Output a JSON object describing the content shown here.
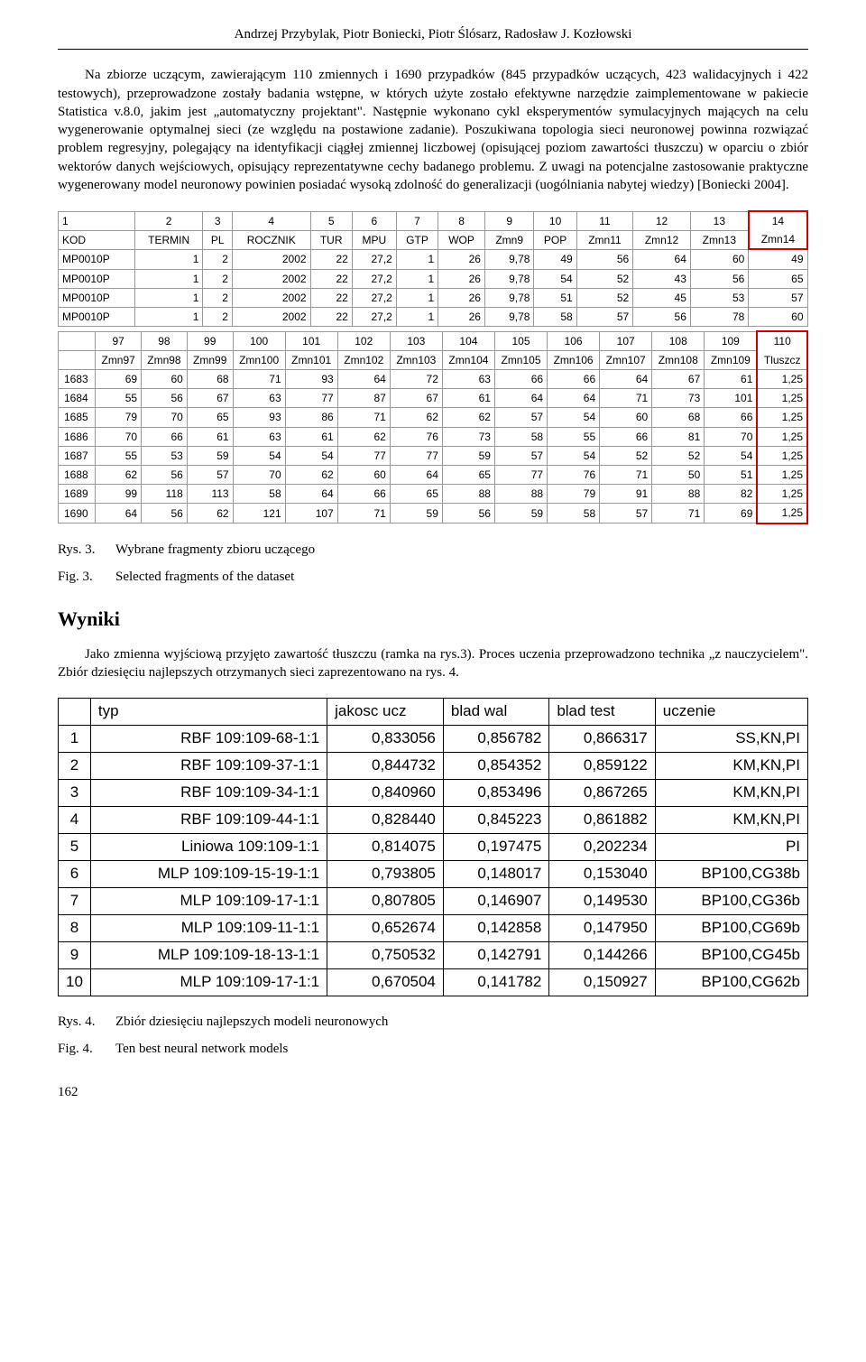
{
  "authors": "Andrzej Przybylak, Piotr Boniecki, Piotr Ślósarz, Radosław J. Kozłowski",
  "paragraph": "Na zbiorze uczącym, zawierającym 110 zmiennych i 1690 przypadków (845 przypadków uczących, 423 walidacyjnych i 422 testowych), przeprowadzone zostały badania wstępne, w których użyte zostało efektywne narzędzie zaimplementowane w pakiecie Statistica v.8.0, jakim jest „automatyczny projektant\". Następnie wykonano cykl eksperymentów symulacyjnych mających na celu wygenerowanie optymalnej sieci (ze względu na postawione zadanie). Poszukiwana topologia sieci neuronowej powinna rozwiązać problem regresyjny, polegający na identyfikacji ciągłej zmiennej liczbowej (opisującej poziom zawartości tłuszczu) w oparciu o zbiór wektorów danych wejściowych, opisujący reprezentatywne cechy badanego problemu. Z uwagi na potencjalne zastosowanie praktyczne wygenerowany model neuronowy powinien posiadać wysoką zdolność do generalizacji (uogólniania nabytej wiedzy) [Boniecki 2004].",
  "fig3": {
    "top": {
      "cols": [
        "1",
        "2",
        "3",
        "4",
        "5",
        "6",
        "7",
        "8",
        "9",
        "10",
        "11",
        "12",
        "13",
        "14"
      ],
      "headers": [
        "KOD",
        "TERMIN",
        "PL",
        "ROCZNIK",
        "TUR",
        "MPU",
        "GTP",
        "WOP",
        "Zmn9",
        "POP",
        "Zmn11",
        "Zmn12",
        "Zmn13",
        "Zmn14"
      ],
      "rows": [
        [
          "MP0010P",
          "1",
          "2",
          "2002",
          "22",
          "27,2",
          "1",
          "26",
          "9,78",
          "49",
          "56",
          "64",
          "60",
          "49"
        ],
        [
          "MP0010P",
          "1",
          "2",
          "2002",
          "22",
          "27,2",
          "1",
          "26",
          "9,78",
          "54",
          "52",
          "43",
          "56",
          "65"
        ],
        [
          "MP0010P",
          "1",
          "2",
          "2002",
          "22",
          "27,2",
          "1",
          "26",
          "9,78",
          "51",
          "52",
          "45",
          "53",
          "57"
        ],
        [
          "MP0010P",
          "1",
          "2",
          "2002",
          "22",
          "27,2",
          "1",
          "26",
          "9,78",
          "58",
          "57",
          "56",
          "78",
          "60"
        ]
      ]
    },
    "bottom": {
      "cols": [
        "",
        "97",
        "98",
        "99",
        "100",
        "101",
        "102",
        "103",
        "104",
        "105",
        "106",
        "107",
        "108",
        "109",
        "110"
      ],
      "headers": [
        "",
        "Zmn97",
        "Zmn98",
        "Zmn99",
        "Zmn100",
        "Zmn101",
        "Zmn102",
        "Zmn103",
        "Zmn104",
        "Zmn105",
        "Zmn106",
        "Zmn107",
        "Zmn108",
        "Zmn109",
        "Tluszcz"
      ],
      "rows": [
        [
          "1683",
          "69",
          "60",
          "68",
          "71",
          "93",
          "64",
          "72",
          "63",
          "66",
          "66",
          "64",
          "67",
          "61",
          "1,25"
        ],
        [
          "1684",
          "55",
          "56",
          "67",
          "63",
          "77",
          "87",
          "67",
          "61",
          "64",
          "64",
          "71",
          "73",
          "101",
          "1,25"
        ],
        [
          "1685",
          "79",
          "70",
          "65",
          "93",
          "86",
          "71",
          "62",
          "62",
          "57",
          "54",
          "60",
          "68",
          "66",
          "1,25"
        ],
        [
          "1686",
          "70",
          "66",
          "61",
          "63",
          "61",
          "62",
          "76",
          "73",
          "58",
          "55",
          "66",
          "81",
          "70",
          "1,25"
        ],
        [
          "1687",
          "55",
          "53",
          "59",
          "54",
          "54",
          "77",
          "77",
          "59",
          "57",
          "54",
          "52",
          "52",
          "54",
          "1,25"
        ],
        [
          "1688",
          "62",
          "56",
          "57",
          "70",
          "62",
          "60",
          "64",
          "65",
          "77",
          "76",
          "71",
          "50",
          "51",
          "1,25"
        ],
        [
          "1689",
          "99",
          "118",
          "113",
          "58",
          "64",
          "66",
          "65",
          "88",
          "88",
          "79",
          "91",
          "88",
          "82",
          "1,25"
        ],
        [
          "1690",
          "64",
          "56",
          "62",
          "121",
          "107",
          "71",
          "59",
          "56",
          "59",
          "58",
          "57",
          "71",
          "69",
          "1,25"
        ]
      ]
    },
    "cap_pl_lbl": "Rys. 3.",
    "cap_pl": "Wybrane fragmenty zbioru uczącego",
    "cap_en_lbl": "Fig. 3.",
    "cap_en": "Selected fragments of the dataset"
  },
  "section_results": "Wyniki",
  "results_paragraph": "Jako zmienna wyjściową przyjęto zawartość tłuszczu (ramka na rys.3). Proces uczenia przeprowadzono technika „z nauczycielem\". Zbiór dziesięciu najlepszych otrzymanych sieci zaprezentowano na rys. 4.",
  "fig4": {
    "headers": [
      "",
      "typ",
      "jakosc ucz",
      "blad wal",
      "blad test",
      "uczenie"
    ],
    "rows": [
      [
        "1",
        "RBF 109:109-68-1:1",
        "0,833056",
        "0,856782",
        "0,866317",
        "SS,KN,PI"
      ],
      [
        "2",
        "RBF 109:109-37-1:1",
        "0,844732",
        "0,854352",
        "0,859122",
        "KM,KN,PI"
      ],
      [
        "3",
        "RBF 109:109-34-1:1",
        "0,840960",
        "0,853496",
        "0,867265",
        "KM,KN,PI"
      ],
      [
        "4",
        "RBF 109:109-44-1:1",
        "0,828440",
        "0,845223",
        "0,861882",
        "KM,KN,PI"
      ],
      [
        "5",
        "Liniowa 109:109-1:1",
        "0,814075",
        "0,197475",
        "0,202234",
        "PI"
      ],
      [
        "6",
        "MLP 109:109-15-19-1:1",
        "0,793805",
        "0,148017",
        "0,153040",
        "BP100,CG38b"
      ],
      [
        "7",
        "MLP 109:109-17-1:1",
        "0,807805",
        "0,146907",
        "0,149530",
        "BP100,CG36b"
      ],
      [
        "8",
        "MLP 109:109-11-1:1",
        "0,652674",
        "0,142858",
        "0,147950",
        "BP100,CG69b"
      ],
      [
        "9",
        "MLP 109:109-18-13-1:1",
        "0,750532",
        "0,142791",
        "0,144266",
        "BP100,CG45b"
      ],
      [
        "10",
        "MLP 109:109-17-1:1",
        "0,670504",
        "0,141782",
        "0,150927",
        "BP100,CG62b"
      ]
    ],
    "cap_pl_lbl": "Rys. 4.",
    "cap_pl": "Zbiór dziesięciu najlepszych modeli neuronowych",
    "cap_en_lbl": "Fig. 4.",
    "cap_en": "Ten best neural network models"
  },
  "pagenum": "162"
}
